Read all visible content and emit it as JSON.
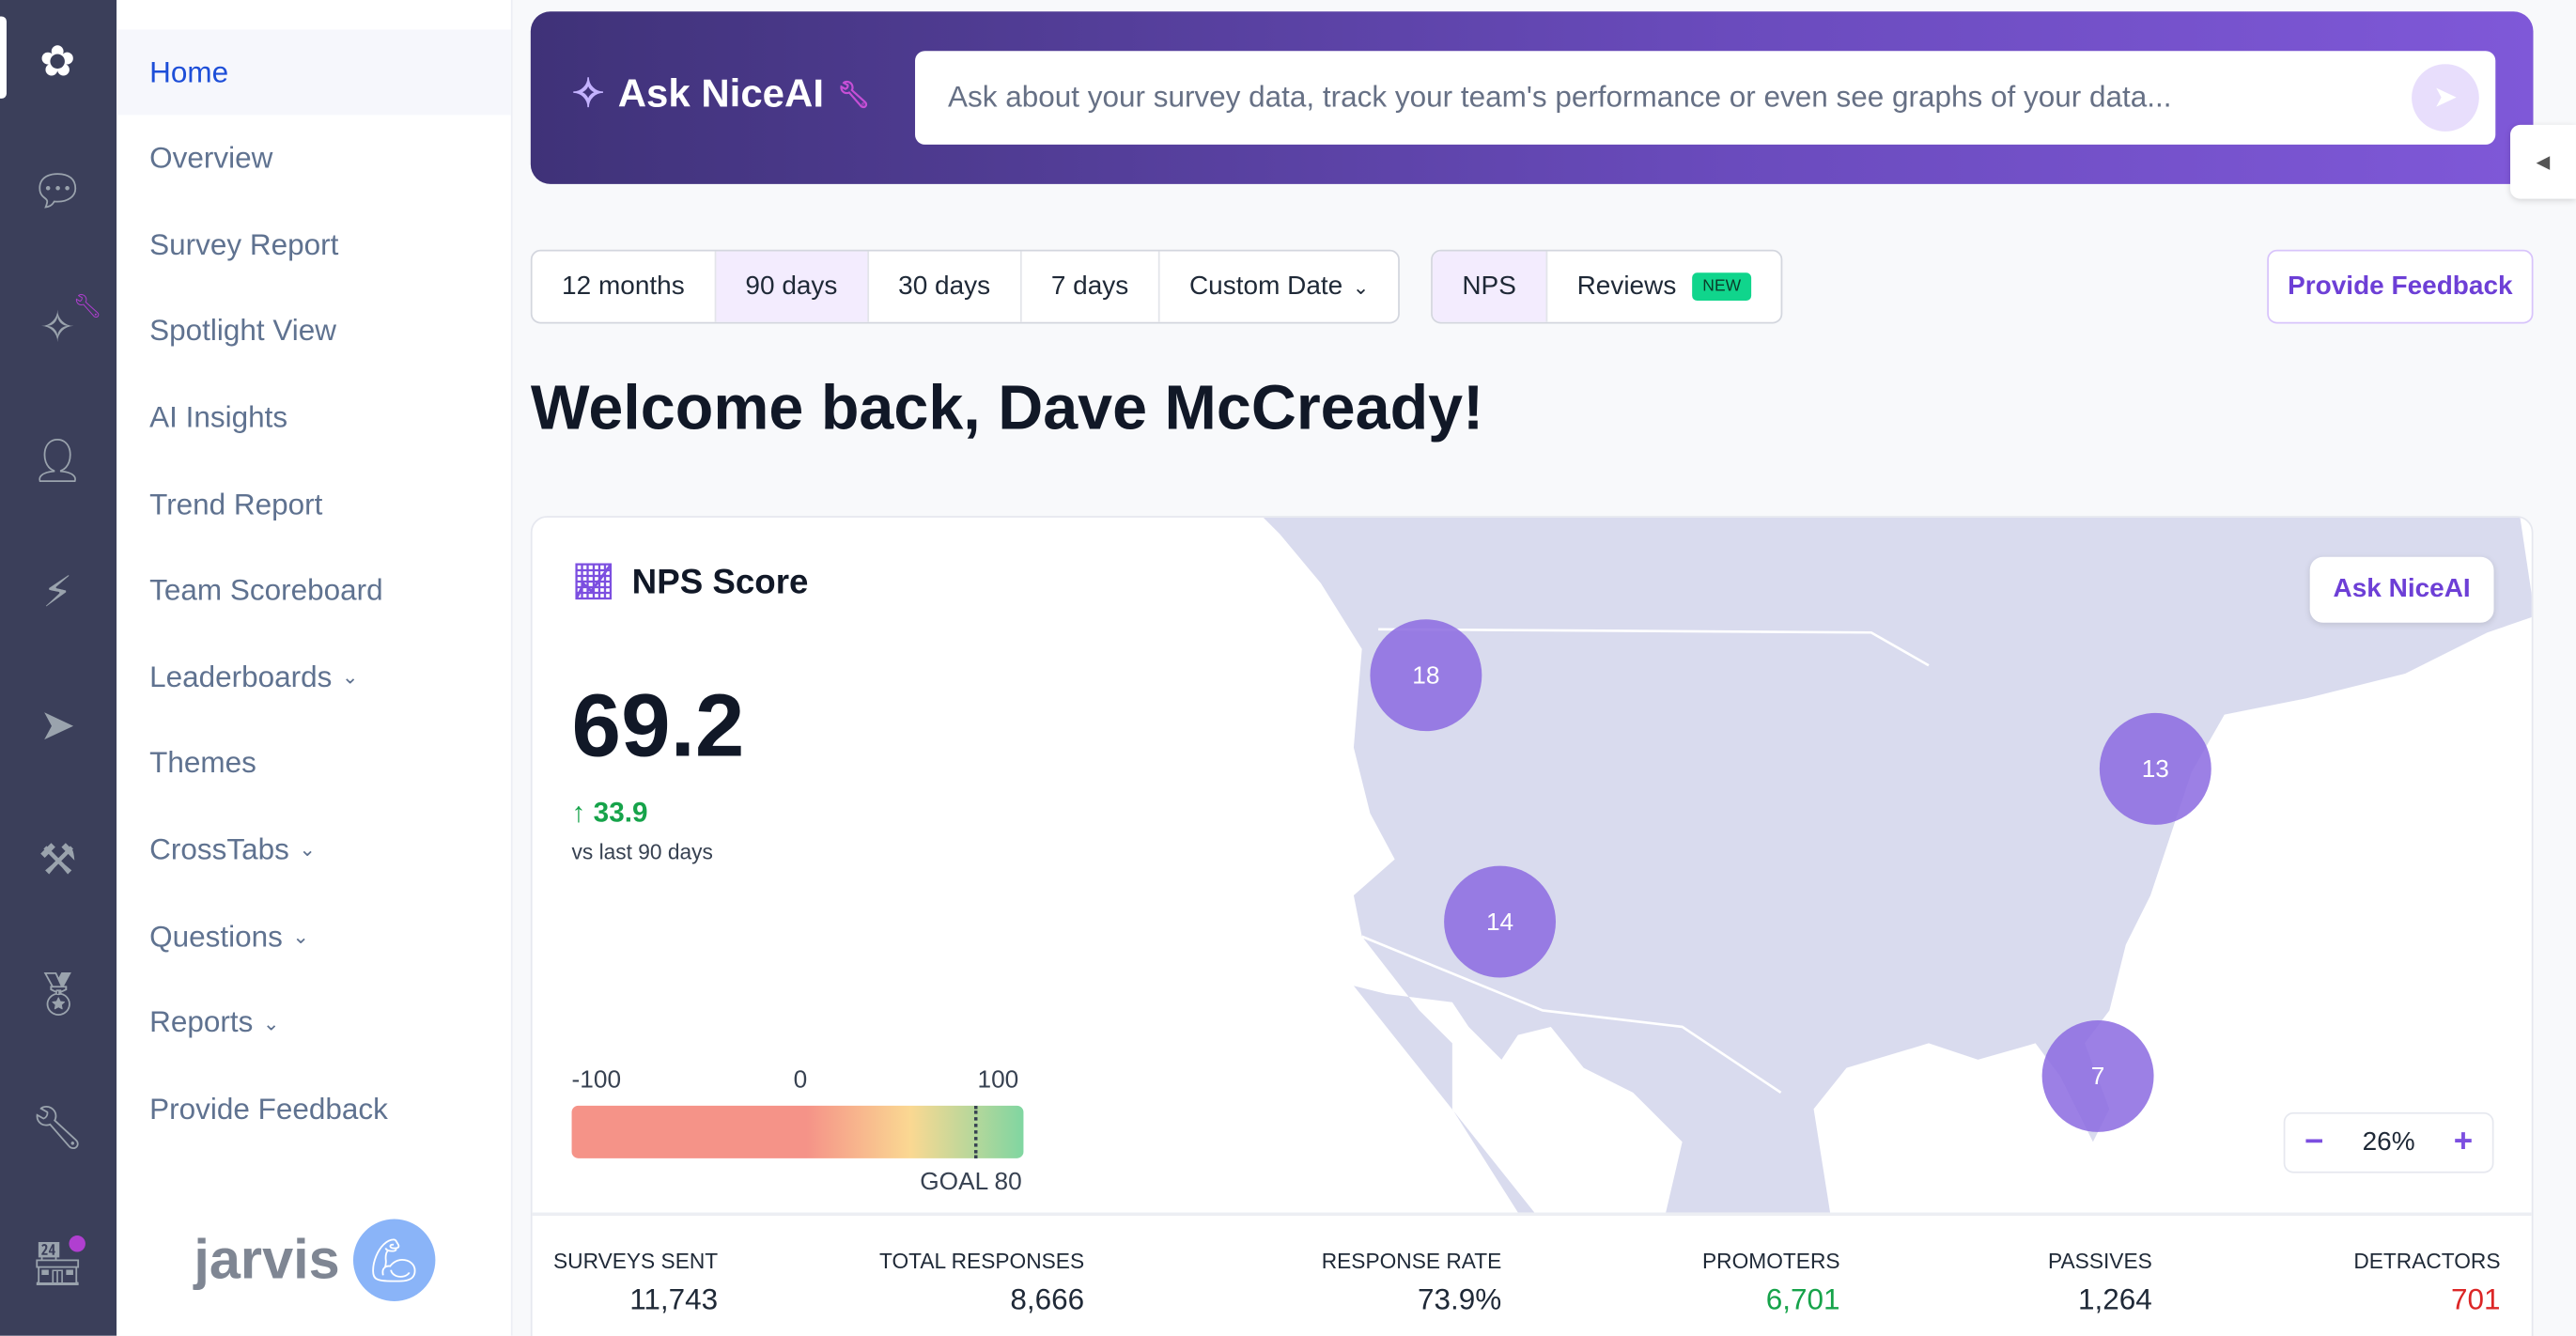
{
  "rail": {
    "icons": [
      "flower-logo-icon",
      "chat-icon",
      "sparkle-wrench-icon",
      "user-icon",
      "lightning-icon",
      "send-plane-icon",
      "tools-icon",
      "medal-icon",
      "wrench-icon",
      "store-icon"
    ]
  },
  "nav": {
    "items": [
      {
        "label": "Home"
      },
      {
        "label": "Overview"
      },
      {
        "label": "Survey Report"
      },
      {
        "label": "Spotlight View"
      },
      {
        "label": "AI Insights"
      },
      {
        "label": "Trend Report"
      },
      {
        "label": "Team Scoreboard"
      },
      {
        "label": "Leaderboards",
        "chevron": "⌄"
      },
      {
        "label": "Themes"
      },
      {
        "label": "CrossTabs",
        "chevron": "⌄"
      },
      {
        "label": "Questions",
        "chevron": "⌄"
      },
      {
        "label": "Reports",
        "chevron": "⌄"
      },
      {
        "label": "Provide Feedback"
      }
    ],
    "brand": "jarvis"
  },
  "ask": {
    "title": "Ask NiceAI",
    "placeholder": "Ask about your survey data, track your team's performance or even see graphs of your data..."
  },
  "filters": {
    "periods": [
      "12 months",
      "90 days",
      "30 days",
      "7 days",
      "Custom Date"
    ],
    "selected_period": "90 days",
    "types": [
      "NPS",
      "Reviews"
    ],
    "selected_type": "NPS",
    "new_badge": "NEW"
  },
  "feedback_button": "Provide Feedback",
  "welcome": "Welcome back, Dave McCready!",
  "nps": {
    "title": "NPS Score",
    "score": "69.2",
    "delta": "↑ 33.9",
    "vs": "vs last 90 days",
    "gauge_min": "-100",
    "gauge_mid": "0",
    "gauge_max": "100",
    "goal": "GOAL 80",
    "goal_value": 80
  },
  "map": {
    "ask_button": "Ask NiceAI",
    "zoom": "26%",
    "bubbles": [
      {
        "label": "18"
      },
      {
        "label": "13"
      },
      {
        "label": "14"
      },
      {
        "label": "7"
      }
    ]
  },
  "stats": [
    {
      "label": "SURVEYS SENT",
      "value": "11,743",
      "color": "#1f2937"
    },
    {
      "label": "TOTAL RESPONSES",
      "value": "8,666",
      "color": "#1f2937"
    },
    {
      "label": "RESPONSE RATE",
      "value": "73.9%",
      "color": "#1f2937"
    },
    {
      "label": "PROMOTERS",
      "value": "6,701",
      "color": "#16a34a"
    },
    {
      "label": "PASSIVES",
      "value": "1,264",
      "color": "#1f2937"
    },
    {
      "label": "DETRACTORS",
      "value": "701",
      "color": "#dc2626"
    }
  ],
  "colors": {
    "accent": "#6d3fd6",
    "rail": "#3b3f5a",
    "bubble": "#8b6ae0"
  }
}
